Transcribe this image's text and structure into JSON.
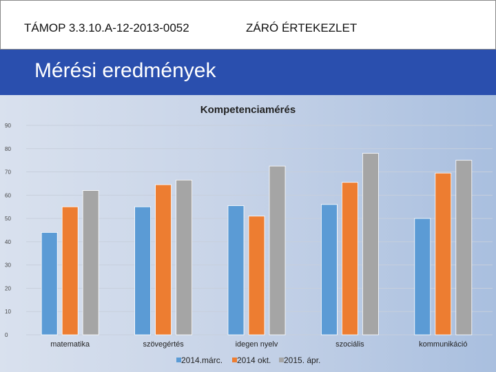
{
  "header": {
    "project_code": "TÁMOP 3.3.10.A-12-2013-0052",
    "meeting_title": "ZÁRÓ ÉRTEKEZLET",
    "page_title": "Mérési eredmények"
  },
  "colors": {
    "brand_blue": "#2a4fae",
    "series_1": "#5b9bd5",
    "series_2": "#ed7d31",
    "series_3": "#a5a5a5"
  },
  "chart_data": {
    "type": "bar",
    "title": "Kompetenciamérés",
    "categories": [
      "matematika",
      "szövegértés",
      "idegen nyelv",
      "szociális",
      "kommunikáció"
    ],
    "series": [
      {
        "name": "2014.márc.",
        "values": [
          44,
          55,
          55.5,
          56,
          50
        ]
      },
      {
        "name": "2014 okt.",
        "values": [
          55,
          64.5,
          51,
          65.5,
          69.5
        ]
      },
      {
        "name": "2015. ápr.",
        "values": [
          62,
          66.5,
          72.5,
          78,
          75
        ]
      }
    ],
    "ylim": [
      0,
      90
    ],
    "yticks": [
      0,
      10,
      20,
      30,
      40,
      50,
      60,
      70,
      80,
      90
    ],
    "ytick_labels": [
      "0",
      "10",
      "20",
      "30",
      "40",
      "50",
      "60",
      "70",
      "80",
      "90"
    ],
    "grid": true,
    "legend_position": "bottom"
  }
}
